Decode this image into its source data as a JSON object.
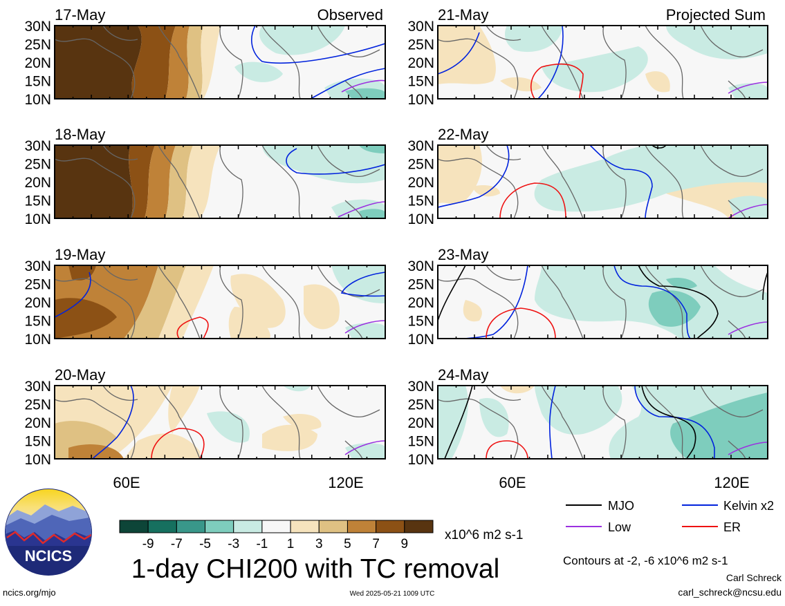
{
  "panels": [
    {
      "date": "17-May",
      "header": "Observed",
      "column": "observed"
    },
    {
      "date": "18-May",
      "header": "",
      "column": "observed"
    },
    {
      "date": "19-May",
      "header": "",
      "column": "observed"
    },
    {
      "date": "20-May",
      "header": "",
      "column": "observed"
    },
    {
      "date": "21-May",
      "header": "Projected Sum",
      "column": "projected"
    },
    {
      "date": "22-May",
      "header": "",
      "column": "projected"
    },
    {
      "date": "23-May",
      "header": "",
      "column": "projected"
    },
    {
      "date": "24-May",
      "header": "",
      "column": "projected"
    }
  ],
  "axes": {
    "lat_ticks": [
      "30N",
      "25N",
      "20N",
      "15N",
      "10N"
    ],
    "lon_ticks": [
      "60E",
      "120E"
    ]
  },
  "colorbar": {
    "labels": [
      "-9",
      "-7",
      "-5",
      "-3",
      "-1",
      "1",
      "3",
      "5",
      "7",
      "9"
    ],
    "colors": [
      "#0d4538",
      "#16705f",
      "#39978a",
      "#7ecdbd",
      "#c9ebe3",
      "#f7f7f7",
      "#f6e3bd",
      "#dfc183",
      "#bf8238",
      "#8c5115",
      "#583410"
    ],
    "units": "x10^6 m2 s-1"
  },
  "title": "1-day CHI200 with TC removal",
  "legend": [
    {
      "label": "MJO",
      "color": "#000000"
    },
    {
      "label": "Kelvin x2",
      "color": "#0022dd"
    },
    {
      "label": "Low",
      "color": "#9b30e0"
    },
    {
      "label": "ER",
      "color": "#ee1111"
    }
  ],
  "contours_note": "Contours at -2, -6 x10^6 m2 s-1",
  "author": "Carl Schreck",
  "email": "carl_schreck@ncsu.edu",
  "website": "ncics.org/mjo",
  "timestamp": "Wed 2025-05-21 1009 UTC",
  "logo_text": "NCICS",
  "chart_data": {
    "type": "heatmap",
    "title": "1-day CHI200 with TC removal",
    "lon_range_degE": [
      40,
      130
    ],
    "lat_range_degN": [
      10,
      30
    ],
    "units": "x10^6 m2 s-1",
    "contour_levels": [
      -2,
      -6
    ],
    "series": [
      "MJO",
      "Kelvin x2",
      "Low",
      "ER"
    ],
    "panels": [
      "17-May",
      "18-May",
      "19-May",
      "20-May",
      "21-May",
      "22-May",
      "23-May",
      "24-May"
    ]
  }
}
